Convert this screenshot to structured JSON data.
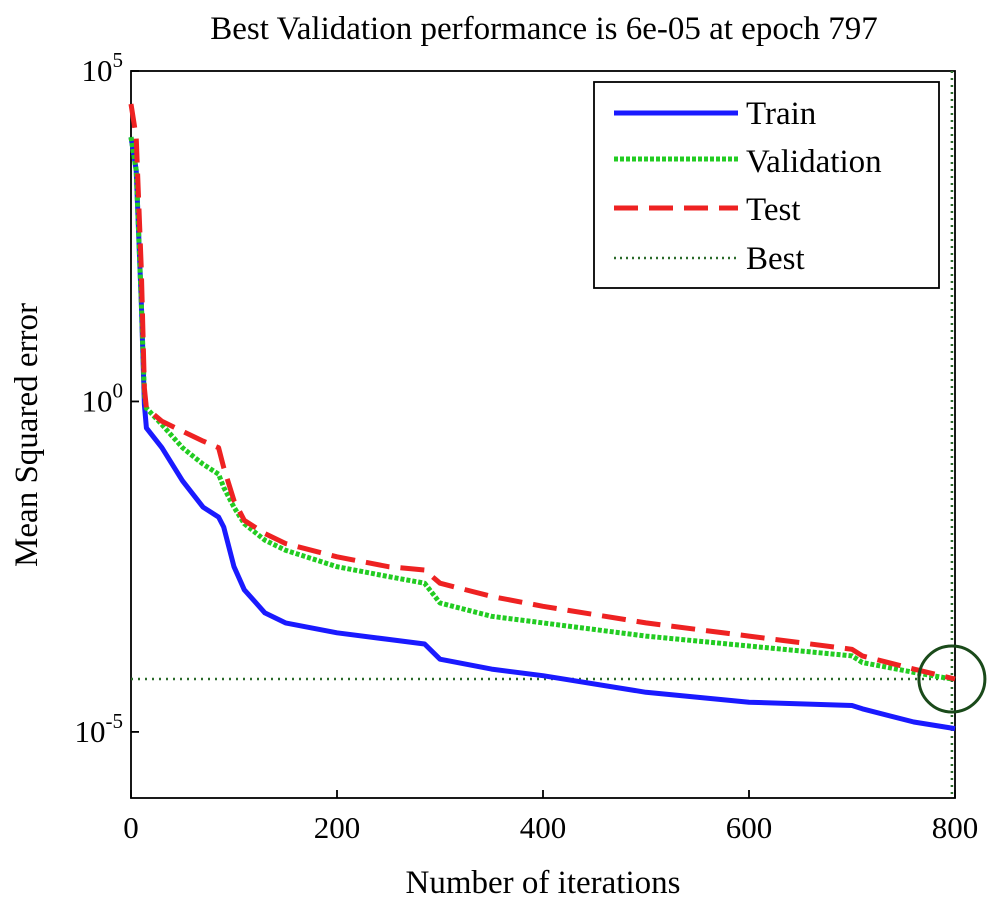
{
  "chart_data": {
    "type": "line",
    "title": "Best Validation performance is 6e-05 at epoch 797",
    "xlabel": "Number of iterations",
    "ylabel": "Mean Squared error",
    "xlim": [
      0,
      800
    ],
    "ylim_log10": [
      -6,
      5
    ],
    "y_scale": "log",
    "x_ticks": [
      {
        "value": 0,
        "label": "0"
      },
      {
        "value": 200,
        "label": "200"
      },
      {
        "value": 400,
        "label": "400"
      },
      {
        "value": 600,
        "label": "600"
      },
      {
        "value": 800,
        "label": "800"
      }
    ],
    "y_ticks": [
      {
        "exp": 5,
        "base": "10",
        "sup": "5"
      },
      {
        "exp": 0,
        "base": "10",
        "sup": "0"
      },
      {
        "exp": -5,
        "base": "10",
        "sup": "-5"
      }
    ],
    "legend": {
      "position": "top-right",
      "entries": [
        "Train",
        "Validation",
        "Test",
        "Best"
      ]
    },
    "best": {
      "epoch": 797,
      "log10_value": -4.2
    },
    "series": [
      {
        "name": "Train",
        "color": "#1a1aff",
        "style": "solid",
        "x": [
          0,
          5,
          10,
          13,
          15,
          30,
          50,
          70,
          85,
          90,
          100,
          110,
          130,
          150,
          200,
          250,
          285,
          300,
          350,
          400,
          500,
          600,
          700,
          710,
          760,
          800
        ],
        "log10_y": [
          4.0,
          3.5,
          1.5,
          -0.05,
          -0.4,
          -0.7,
          -1.2,
          -1.6,
          -1.75,
          -1.9,
          -2.5,
          -2.85,
          -3.2,
          -3.35,
          -3.5,
          -3.6,
          -3.67,
          -3.9,
          -4.05,
          -4.15,
          -4.4,
          -4.55,
          -4.6,
          -4.65,
          -4.85,
          -4.95
        ]
      },
      {
        "name": "Validation",
        "color": "#22cc22",
        "style": "dotted",
        "x": [
          0,
          5,
          10,
          13,
          15,
          30,
          50,
          70,
          85,
          90,
          100,
          110,
          130,
          150,
          200,
          250,
          285,
          300,
          350,
          400,
          500,
          600,
          700,
          710,
          760,
          797
        ],
        "log10_y": [
          4.0,
          3.5,
          1.5,
          0.1,
          -0.1,
          -0.35,
          -0.7,
          -0.95,
          -1.1,
          -1.3,
          -1.6,
          -1.85,
          -2.1,
          -2.25,
          -2.5,
          -2.65,
          -2.75,
          -3.05,
          -3.25,
          -3.35,
          -3.55,
          -3.7,
          -3.85,
          -3.95,
          -4.1,
          -4.2
        ]
      },
      {
        "name": "Test",
        "color": "#ee2222",
        "style": "dashed",
        "x": [
          0,
          5,
          10,
          13,
          15,
          30,
          50,
          70,
          85,
          90,
          100,
          110,
          130,
          150,
          200,
          250,
          285,
          300,
          350,
          400,
          500,
          600,
          700,
          710,
          760,
          800
        ],
        "log10_y": [
          4.5,
          4.0,
          2.0,
          0.2,
          -0.1,
          -0.3,
          -0.45,
          -0.6,
          -0.7,
          -1.0,
          -1.5,
          -1.8,
          -2.0,
          -2.15,
          -2.35,
          -2.5,
          -2.55,
          -2.75,
          -2.95,
          -3.1,
          -3.35,
          -3.55,
          -3.75,
          -3.85,
          -4.05,
          -4.2
        ]
      }
    ]
  }
}
